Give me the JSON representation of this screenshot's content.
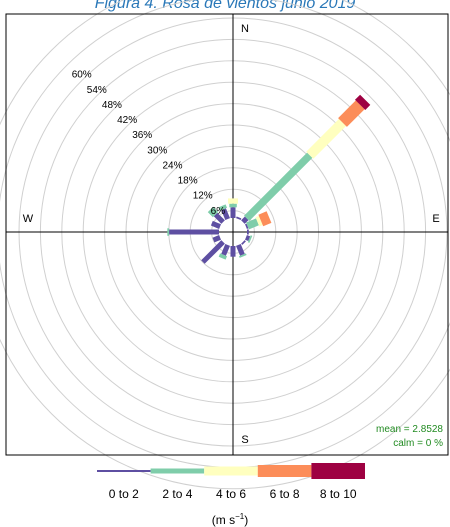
{
  "chart_data": {
    "type": "windrose",
    "title": "Figura 4. Rosa de vientos junio 2019",
    "directions": [
      "N",
      "NNE",
      "NE",
      "ENE",
      "E",
      "ESE",
      "SE",
      "SSE",
      "S",
      "SSW",
      "SW",
      "WSW",
      "W",
      "WNW",
      "NW",
      "NNW"
    ],
    "compass_labels": [
      "N",
      "E",
      "S",
      "W"
    ],
    "ring_labels": [
      "6%",
      "12%",
      "18%",
      "24%",
      "30%",
      "36%",
      "42%",
      "48%",
      "54%",
      "60%"
    ],
    "rmax": 60,
    "rings": [
      6,
      12,
      18,
      24,
      30,
      36,
      42,
      48,
      54,
      60,
      66,
      72
    ],
    "series": [
      {
        "name": "0 to 2",
        "color": "#5e4fa2",
        "values": [
          3,
          0.5,
          1.5,
          0.5,
          0.5,
          1,
          0.5,
          3,
          3,
          3,
          8,
          2,
          14,
          2.5,
          3,
          3
        ]
      },
      {
        "name": "2 to 4",
        "color": "#7fcdaa",
        "values": [
          1,
          0,
          25,
          3,
          0,
          0.5,
          0,
          0.5,
          0,
          1,
          0,
          0,
          0.5,
          0,
          2,
          1
        ]
      },
      {
        "name": "4 to 6",
        "color": "#ffffbf",
        "values": [
          1.5,
          0,
          13,
          1,
          0,
          0,
          0,
          0,
          0,
          0,
          0,
          0,
          0,
          0,
          0,
          0
        ]
      },
      {
        "name": "6 to 8",
        "color": "#fc8d59",
        "values": [
          0,
          0,
          7,
          2.5,
          0,
          0,
          0,
          0,
          0,
          0,
          0,
          0,
          0,
          0,
          0,
          0
        ]
      },
      {
        "name": "8 to 10",
        "color": "#9e0142",
        "values": [
          0,
          0,
          2,
          0,
          0,
          0,
          0,
          0,
          0,
          0,
          0,
          0,
          0,
          0,
          0,
          0
        ]
      }
    ],
    "stats": {
      "mean": "mean = 2.8528",
      "calm": "calm = 0 %"
    },
    "legend": {
      "placement": "bottom",
      "unit": "(m s",
      "unit_sup": "−1",
      "unit_close": ")"
    }
  }
}
